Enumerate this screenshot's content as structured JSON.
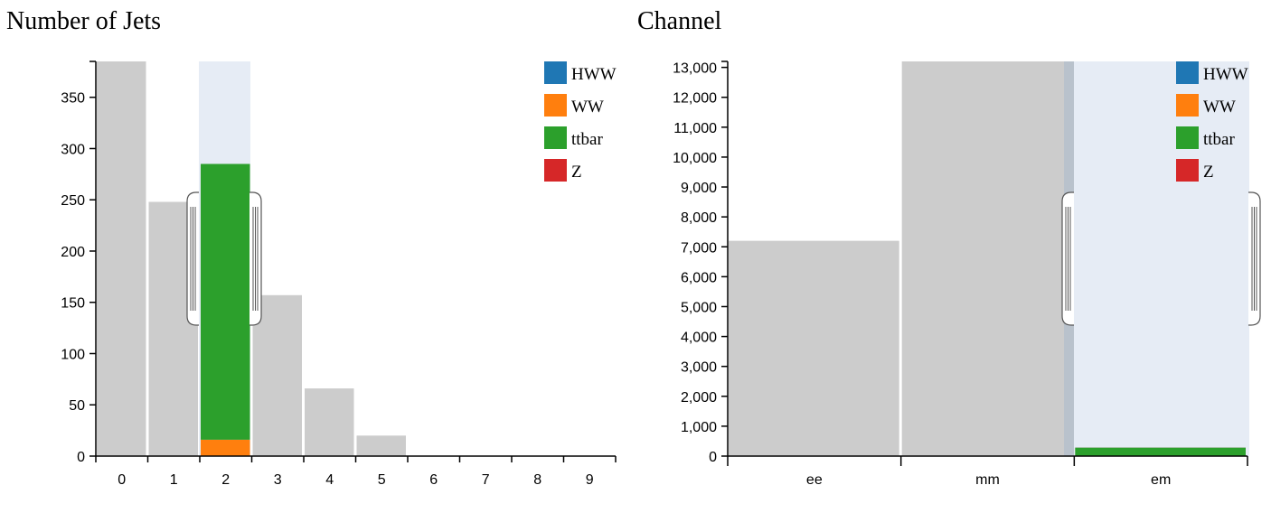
{
  "chart_data": [
    {
      "type": "bar",
      "title": "Number of Jets",
      "categories": [
        "0",
        "1",
        "2",
        "3",
        "4",
        "5",
        "6",
        "7",
        "8",
        "9"
      ],
      "ylim": [
        0,
        385
      ],
      "yticks": [
        0,
        50,
        100,
        150,
        200,
        250,
        300,
        350
      ],
      "background_values": [
        385,
        248,
        285,
        157,
        66,
        20,
        0,
        0,
        0,
        0
      ],
      "selected_category": "2",
      "series": [
        {
          "name": "HWW",
          "values": [
            0,
            0,
            0,
            0,
            0,
            0,
            0,
            0,
            0,
            0
          ]
        },
        {
          "name": "WW",
          "values": [
            0,
            0,
            16,
            0,
            0,
            0,
            0,
            0,
            0,
            0
          ]
        },
        {
          "name": "ttbar",
          "values": [
            0,
            0,
            269,
            0,
            0,
            0,
            0,
            0,
            0,
            0
          ]
        },
        {
          "name": "Z",
          "values": [
            0,
            0,
            0,
            0,
            0,
            0,
            0,
            0,
            0,
            0
          ]
        }
      ]
    },
    {
      "type": "bar",
      "title": "Channel",
      "categories": [
        "ee",
        "mm",
        "em"
      ],
      "ylim": [
        0,
        13200
      ],
      "yticks": [
        0,
        1000,
        2000,
        3000,
        4000,
        5000,
        6000,
        7000,
        8000,
        9000,
        10000,
        11000,
        12000,
        13000
      ],
      "ytick_labels": [
        "0",
        "1,000",
        "2,000",
        "3,000",
        "4,000",
        "5,000",
        "6,000",
        "7,000",
        "8,000",
        "9,000",
        "10,000",
        "11,000",
        "12,000",
        "13,000"
      ],
      "background_values": [
        7200,
        13200,
        300
      ],
      "selected_category": "em",
      "series": [
        {
          "name": "HWW",
          "values": [
            0,
            0,
            0
          ]
        },
        {
          "name": "WW",
          "values": [
            0,
            0,
            0
          ]
        },
        {
          "name": "ttbar",
          "values": [
            0,
            0,
            280
          ]
        },
        {
          "name": "Z",
          "values": [
            0,
            0,
            0
          ]
        }
      ]
    }
  ],
  "colors": {
    "HWW": "#1f77b4",
    "WW": "#ff7f0e",
    "ttbar": "#2ca02c",
    "Z": "#d62728",
    "background_bar": "#cccccc",
    "selection": "#e6ecf5"
  },
  "legend_items": [
    "HWW",
    "WW",
    "ttbar",
    "Z"
  ]
}
